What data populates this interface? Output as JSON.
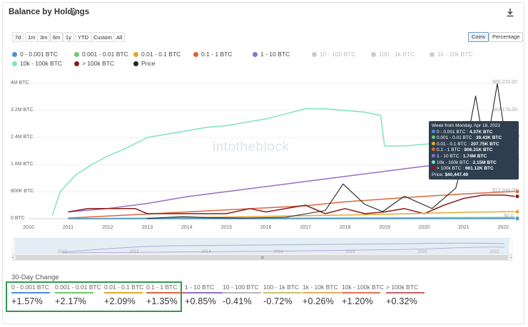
{
  "header": {
    "title": "Balance by Holdings",
    "help_icon": "question-circle-icon",
    "download_icon": "download-icon"
  },
  "ranges": [
    "7d",
    "1m",
    "3m",
    "6m",
    "1y",
    "YTD",
    "Custom",
    "All"
  ],
  "toggle": {
    "options": [
      "Coins",
      "Percentage"
    ],
    "active": "Coins"
  },
  "legend": [
    {
      "label": "0 - 0.001 BTC",
      "color": "#4a90d9",
      "active": true
    },
    {
      "label": "0.001 - 0.01 BTC",
      "color": "#6cc96c",
      "active": true
    },
    {
      "label": "0.01 - 0.1 BTC",
      "color": "#e5a82b",
      "active": true
    },
    {
      "label": "0.1 - 1 BTC",
      "color": "#d9663a",
      "active": true
    },
    {
      "label": "1 - 10 BTC",
      "color": "#9370c9",
      "active": true
    },
    {
      "label": "10 - 100 BTC",
      "color": "#cccccc",
      "active": false
    },
    {
      "label": "100 - 1k BTC",
      "color": "#cccccc",
      "active": false
    },
    {
      "label": "1k - 10k BTC",
      "color": "#cccccc",
      "active": false
    },
    {
      "label": "10k - 100k BTC",
      "color": "#7fe5b8",
      "active": true
    },
    {
      "label": "> 100k BTC",
      "color": "#8b1a1a",
      "active": true
    },
    {
      "label": "Price",
      "color": "#222222",
      "active": true
    }
  ],
  "watermark": "intotheblock",
  "chart_data": {
    "type": "line",
    "x": [
      "2010",
      "2011",
      "2012",
      "2013",
      "2014",
      "2015",
      "2016",
      "2017",
      "2018",
      "2019",
      "2020",
      "2021",
      "2022"
    ],
    "ytick_labels": [
      "0 BTC",
      "800K BTC",
      "1.6M BTC",
      "2.4M BTC",
      "3.2M BTC",
      "4M BTC"
    ],
    "y_left_range": [
      0,
      4000000
    ],
    "right_axis_labels": [
      "$66,220.00",
      "$53,176.00",
      "$13,044.00",
      "$0.0"
    ],
    "grid": true,
    "legend_position": "top",
    "series": [
      {
        "name": "10k - 100k BTC",
        "color": "#7fe5b8",
        "points": [
          [
            2010.6,
            100000
          ],
          [
            2010.8,
            800000
          ],
          [
            2011.2,
            1300000
          ],
          [
            2011.6,
            1600000
          ],
          [
            2012.0,
            1850000
          ],
          [
            2012.5,
            2100000
          ],
          [
            2013.0,
            2400000
          ],
          [
            2013.5,
            2500000
          ],
          [
            2014.0,
            2600000
          ],
          [
            2014.5,
            2700000
          ],
          [
            2015.0,
            2750000
          ],
          [
            2015.5,
            2850000
          ],
          [
            2016.0,
            2950000
          ],
          [
            2016.5,
            3100000
          ],
          [
            2017.0,
            3250000
          ],
          [
            2017.5,
            3250000
          ],
          [
            2018.0,
            3200000
          ],
          [
            2018.5,
            3150000
          ],
          [
            2018.9,
            3050000
          ],
          [
            2019.0,
            2150000
          ],
          [
            2019.5,
            2150000
          ],
          [
            2020.0,
            2200000
          ],
          [
            2020.5,
            2250000
          ],
          [
            2021.0,
            2150000
          ],
          [
            2021.5,
            2150000
          ],
          [
            2022.0,
            2150000
          ],
          [
            2022.3,
            2150000
          ]
        ]
      },
      {
        "name": "1 - 10 BTC",
        "color": "#9370c9",
        "points": [
          [
            2011.0,
            200000
          ],
          [
            2012.0,
            300000
          ],
          [
            2013.0,
            450000
          ],
          [
            2014.0,
            650000
          ],
          [
            2015.0,
            800000
          ],
          [
            2016.0,
            950000
          ],
          [
            2017.0,
            1100000
          ],
          [
            2018.0,
            1250000
          ],
          [
            2019.0,
            1400000
          ],
          [
            2020.0,
            1550000
          ],
          [
            2021.0,
            1650000
          ],
          [
            2021.5,
            1700000
          ],
          [
            2022.0,
            1740000
          ],
          [
            2022.3,
            1740000
          ]
        ]
      },
      {
        "name": "0.1 - 1 BTC",
        "color": "#d9663a",
        "points": [
          [
            2011.0,
            20000
          ],
          [
            2012.0,
            80000
          ],
          [
            2013.0,
            140000
          ],
          [
            2014.0,
            200000
          ],
          [
            2015.0,
            260000
          ],
          [
            2016.0,
            320000
          ],
          [
            2017.0,
            380000
          ],
          [
            2018.0,
            500000
          ],
          [
            2019.0,
            580000
          ],
          [
            2020.0,
            660000
          ],
          [
            2021.0,
            730000
          ],
          [
            2022.0,
            790000
          ],
          [
            2022.3,
            806310
          ]
        ]
      },
      {
        "name": "> 100k BTC",
        "color": "#8b1a1a",
        "points": [
          [
            2011.0,
            200000
          ],
          [
            2011.5,
            300000
          ],
          [
            2012.0,
            300000
          ],
          [
            2012.7,
            300000
          ],
          [
            2013.0,
            150000
          ],
          [
            2014.0,
            150000
          ],
          [
            2015.0,
            150000
          ],
          [
            2015.6,
            300000
          ],
          [
            2016.0,
            200000
          ],
          [
            2016.5,
            300000
          ],
          [
            2017.0,
            400000
          ],
          [
            2017.5,
            150000
          ],
          [
            2018.0,
            300000
          ],
          [
            2018.5,
            150000
          ],
          [
            2019.0,
            200000
          ],
          [
            2019.5,
            300000
          ],
          [
            2020.0,
            150000
          ],
          [
            2020.5,
            400000
          ],
          [
            2021.0,
            600000
          ],
          [
            2021.5,
            700000
          ],
          [
            2022.0,
            700000
          ],
          [
            2022.3,
            661120
          ]
        ]
      },
      {
        "name": "0.01 - 0.1 BTC",
        "color": "#e5a82b",
        "points": [
          [
            2011.0,
            5000
          ],
          [
            2013.0,
            20000
          ],
          [
            2015.0,
            50000
          ],
          [
            2017.0,
            90000
          ],
          [
            2019.0,
            130000
          ],
          [
            2020.0,
            160000
          ],
          [
            2021.0,
            190000
          ],
          [
            2022.0,
            205000
          ],
          [
            2022.3,
            207750
          ]
        ]
      },
      {
        "name": "0.001 - 0.01 BTC",
        "color": "#6cc96c",
        "points": [
          [
            2011.0,
            1000
          ],
          [
            2014.0,
            8000
          ],
          [
            2017.0,
            18000
          ],
          [
            2020.0,
            30000
          ],
          [
            2022.3,
            39430
          ]
        ]
      },
      {
        "name": "0 - 0.001 BTC",
        "color": "#4a90d9",
        "points": [
          [
            2011.0,
            100
          ],
          [
            2015.0,
            1000
          ],
          [
            2019.0,
            2500
          ],
          [
            2022.3,
            4370
          ]
        ]
      },
      {
        "name": "Price",
        "color": "#222222",
        "axis": "right",
        "points": [
          [
            2013.0,
            100
          ],
          [
            2013.9,
            1000
          ],
          [
            2014.5,
            500
          ],
          [
            2015.5,
            300
          ],
          [
            2016.5,
            700
          ],
          [
            2017.5,
            4000
          ],
          [
            2017.95,
            17000
          ],
          [
            2018.5,
            7000
          ],
          [
            2018.95,
            3500
          ],
          [
            2019.5,
            11000
          ],
          [
            2020.2,
            5000
          ],
          [
            2020.8,
            15000
          ],
          [
            2021.0,
            30000
          ],
          [
            2021.3,
            60000
          ],
          [
            2021.55,
            32000
          ],
          [
            2021.85,
            66000
          ],
          [
            2022.05,
            40000
          ],
          [
            2022.3,
            40447
          ]
        ]
      }
    ]
  },
  "tooltip": {
    "header": "Week from Monday, Apr 18, 2022",
    "rows": [
      {
        "label": "0 - 0.001 BTC",
        "value": "4.37K BTC",
        "color": "#4a90d9"
      },
      {
        "label": "0.001 - 0.01 BTC",
        "value": "39.43K BTC",
        "color": "#6cc96c"
      },
      {
        "label": "0.01 - 0.1 BTC",
        "value": "207.75K BTC",
        "color": "#e5a82b"
      },
      {
        "label": "0.1 - 1 BTC",
        "value": "806.31K BTC",
        "color": "#d9663a"
      },
      {
        "label": "1 - 10 BTC",
        "value": "1.74M BTC",
        "color": "#9370c9"
      },
      {
        "label": "10k - 100k BTC",
        "value": "2.15M BTC",
        "color": "#7fe5b8"
      },
      {
        "label": "> 100k BTC",
        "value": "661.12K BTC",
        "color": "#8b1a1a"
      }
    ],
    "price_label": "Price",
    "price_value": "$40,447.49"
  },
  "navigator": {
    "x": [
      "2010",
      "2012",
      "2014",
      "2016",
      "2018",
      "2020",
      "2022"
    ]
  },
  "change_section": {
    "title": "30-Day Change",
    "items": [
      {
        "label": "0 - 0.001 BTC",
        "value": "+1.57%",
        "color": "#4a90d9"
      },
      {
        "label": "0.001 - 0.01 BTC",
        "value": "+2.17%",
        "color": "#6cc96c"
      },
      {
        "label": "0.01 - 0.1 BTC",
        "value": "+2.09%",
        "color": "#e5a82b"
      },
      {
        "label": "0.1 - 1 BTC",
        "value": "+1.35%",
        "color": "#d9663a"
      },
      {
        "label": "1 - 10 BTC",
        "value": "+0.85%",
        "color": "#9370c9"
      },
      {
        "label": "10 - 100 BTC",
        "value": "-0.41%",
        "color": "#b7b7b7"
      },
      {
        "label": "100 - 1k BTC",
        "value": "-0.72%",
        "color": "#c9c26b"
      },
      {
        "label": "1k - 10k BTC",
        "value": "+0.26%",
        "color": "#e0b060"
      },
      {
        "label": "10k - 100k BTC",
        "value": "+1.20%",
        "color": "#e07050"
      },
      {
        "label": "> 100k BTC",
        "value": "+0.32%",
        "color": "#c86060"
      }
    ]
  }
}
